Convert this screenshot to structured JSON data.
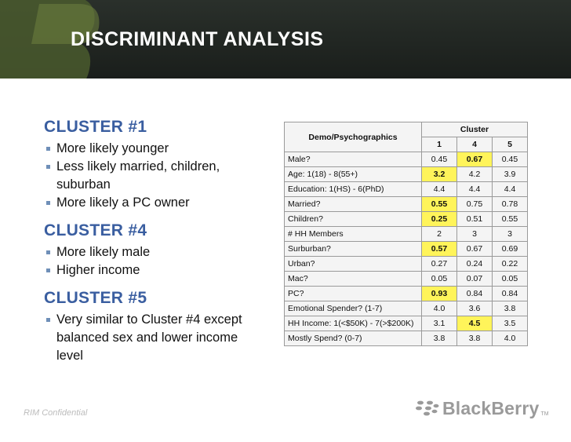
{
  "header": {
    "title": "DISCRIMINANT ANALYSIS"
  },
  "clusters": [
    {
      "title": "CLUSTER #1",
      "bullets": [
        "More likely younger",
        "Less likely married, children, suburban",
        "More likely a PC owner"
      ]
    },
    {
      "title": "CLUSTER #4",
      "bullets": [
        "More likely male",
        "Higher income"
      ]
    },
    {
      "title": "CLUSTER #5",
      "bullets": [
        "Very similar to Cluster #4 except balanced sex and lower income level"
      ]
    }
  ],
  "table": {
    "header_label": "Demo/Psychographics",
    "group_header": "Cluster",
    "columns": [
      "1",
      "4",
      "5"
    ],
    "rows": [
      {
        "label": "Male?",
        "values": [
          "0.45",
          "0.67",
          "0.45"
        ],
        "highlight": [
          false,
          true,
          false
        ]
      },
      {
        "label": "Age: 1(18) - 8(55+)",
        "values": [
          "3.2",
          "4.2",
          "3.9"
        ],
        "highlight": [
          true,
          false,
          false
        ]
      },
      {
        "label": "Education: 1(HS) - 6(PhD)",
        "values": [
          "4.4",
          "4.4",
          "4.4"
        ],
        "highlight": [
          false,
          false,
          false
        ]
      },
      {
        "label": "Married?",
        "values": [
          "0.55",
          "0.75",
          "0.78"
        ],
        "highlight": [
          true,
          false,
          false
        ]
      },
      {
        "label": "Children?",
        "values": [
          "0.25",
          "0.51",
          "0.55"
        ],
        "highlight": [
          true,
          false,
          false
        ]
      },
      {
        "label": "# HH Members",
        "values": [
          "2",
          "3",
          "3"
        ],
        "highlight": [
          false,
          false,
          false
        ]
      },
      {
        "label": "Surburban?",
        "values": [
          "0.57",
          "0.67",
          "0.69"
        ],
        "highlight": [
          true,
          false,
          false
        ]
      },
      {
        "label": "Urban?",
        "values": [
          "0.27",
          "0.24",
          "0.22"
        ],
        "highlight": [
          false,
          false,
          false
        ]
      },
      {
        "label": "Mac?",
        "values": [
          "0.05",
          "0.07",
          "0.05"
        ],
        "highlight": [
          false,
          false,
          false
        ]
      },
      {
        "label": "PC?",
        "values": [
          "0.93",
          "0.84",
          "0.84"
        ],
        "highlight": [
          true,
          false,
          false
        ]
      },
      {
        "label": "Emotional Spender? (1-7)",
        "values": [
          "4.0",
          "3.6",
          "3.8"
        ],
        "highlight": [
          false,
          false,
          false
        ]
      },
      {
        "label": "HH Income: 1(<$50K) - 7(>$200K)",
        "values": [
          "3.1",
          "4.5",
          "3.5"
        ],
        "highlight": [
          false,
          true,
          false
        ]
      },
      {
        "label": "Mostly Spend? (0-7)",
        "values": [
          "3.8",
          "3.8",
          "4.0"
        ],
        "highlight": [
          false,
          false,
          false
        ]
      }
    ]
  },
  "footer": {
    "confidential": "RIM Confidential",
    "brand": "BlackBerry",
    "trademark": "TM"
  },
  "colors": {
    "header_bg": "#1f2421",
    "title": "#3a5ea0",
    "highlight": "#fff45a",
    "brand_gray": "#9a9a9a"
  }
}
